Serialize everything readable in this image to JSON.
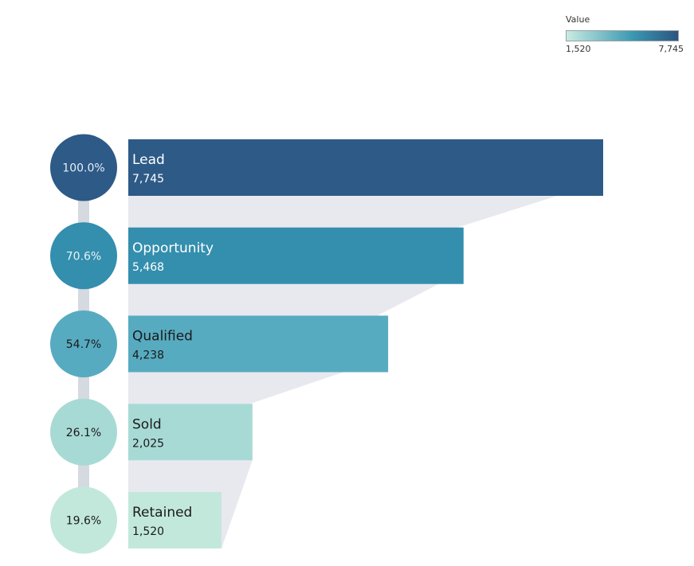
{
  "legend": {
    "title": "Value",
    "min_label": "1,520",
    "max_label": "7,745",
    "colors": [
      "#c9ebe0",
      "#3a97b2",
      "#2c5580"
    ]
  },
  "chart_data": {
    "type": "bar",
    "subtype": "funnel",
    "orientation": "horizontal",
    "categories": [
      "Lead",
      "Opportunity",
      "Qualified",
      "Sold",
      "Retained"
    ],
    "values": [
      7745,
      5468,
      4238,
      2025,
      1520
    ],
    "value_labels": [
      "7,745",
      "5,468",
      "4,238",
      "2,025",
      "1,520"
    ],
    "percent_labels": [
      "100.0%",
      "70.6%",
      "54.7%",
      "26.1%",
      "19.6%"
    ],
    "colors": [
      "#2d5a87",
      "#348eae",
      "#57abc0",
      "#a8dad5",
      "#c2e8dc"
    ],
    "label_colors": [
      "#ffffff",
      "#ffffff",
      "#1a1a1a",
      "#1a1a1a",
      "#1a1a1a"
    ],
    "percent_text_colors": [
      "#e6eef5",
      "#e6f2f6",
      "#1a1a1a",
      "#1a1a1a",
      "#1a1a1a"
    ],
    "color_scale": {
      "min": 1520,
      "max": 7745
    },
    "connector_color": "#e8e9ef",
    "spine_color": "#d5d9e0"
  }
}
